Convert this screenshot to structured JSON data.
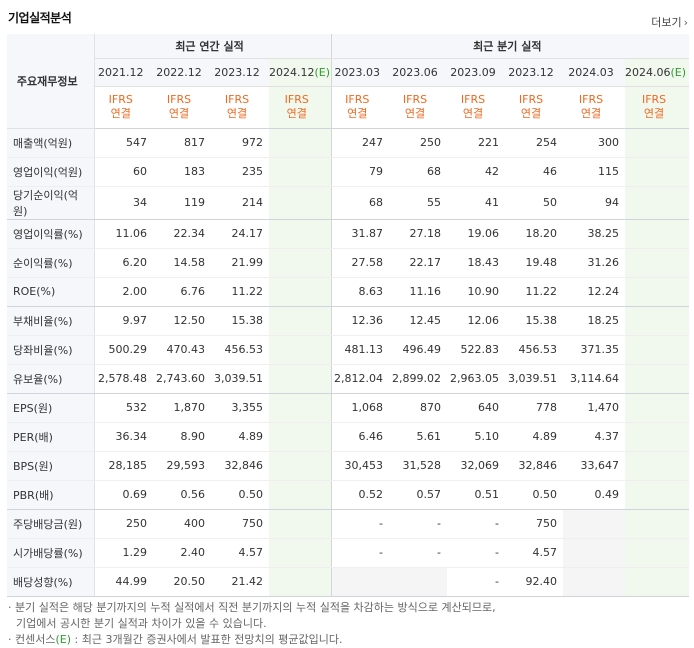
{
  "header": {
    "title": "기업실적분석",
    "more_label": "더보기",
    "more_arrow": "›"
  },
  "table": {
    "row_header_label": "주요재무정보",
    "annual_group": "최근 연간 실적",
    "quarter_group": "최근 분기 실적",
    "annual_periods": [
      "2021.12",
      "2022.12",
      "2023.12",
      "2024.12"
    ],
    "quarter_periods": [
      "2023.03",
      "2023.06",
      "2023.09",
      "2023.12",
      "2024.03",
      "2024.06"
    ],
    "estimate_mark": "(E)",
    "ifrs_top": "IFRS",
    "ifrs_bottom": "연결",
    "rows": [
      {
        "label": "매출액(억원)",
        "values": [
          "547",
          "817",
          "972",
          "",
          "247",
          "250",
          "221",
          "254",
          "300",
          ""
        ]
      },
      {
        "label": "영업이익(억원)",
        "values": [
          "60",
          "183",
          "235",
          "",
          "79",
          "68",
          "42",
          "46",
          "115",
          ""
        ]
      },
      {
        "label": "당기순이익(억원)",
        "values": [
          "34",
          "119",
          "214",
          "",
          "68",
          "55",
          "41",
          "50",
          "94",
          ""
        ]
      },
      {
        "label": "영업이익률(%)",
        "values": [
          "11.06",
          "22.34",
          "24.17",
          "",
          "31.87",
          "27.18",
          "19.06",
          "18.20",
          "38.25",
          ""
        ]
      },
      {
        "label": "순이익률(%)",
        "values": [
          "6.20",
          "14.58",
          "21.99",
          "",
          "27.58",
          "22.17",
          "18.43",
          "19.48",
          "31.26",
          ""
        ]
      },
      {
        "label": "ROE(%)",
        "values": [
          "2.00",
          "6.76",
          "11.22",
          "",
          "8.63",
          "11.16",
          "10.90",
          "11.22",
          "12.24",
          ""
        ]
      },
      {
        "label": "부채비율(%)",
        "values": [
          "9.97",
          "12.50",
          "15.38",
          "",
          "12.36",
          "12.45",
          "12.06",
          "15.38",
          "18.25",
          ""
        ]
      },
      {
        "label": "당좌비율(%)",
        "values": [
          "500.29",
          "470.43",
          "456.53",
          "",
          "481.13",
          "496.49",
          "522.83",
          "456.53",
          "371.35",
          ""
        ]
      },
      {
        "label": "유보율(%)",
        "values": [
          "2,578.48",
          "2,743.60",
          "3,039.51",
          "",
          "2,812.04",
          "2,899.02",
          "2,963.05",
          "3,039.51",
          "3,114.64",
          ""
        ]
      },
      {
        "label": "EPS(원)",
        "values": [
          "532",
          "1,870",
          "3,355",
          "",
          "1,068",
          "870",
          "640",
          "778",
          "1,470",
          ""
        ]
      },
      {
        "label": "PER(배)",
        "values": [
          "36.34",
          "8.90",
          "4.89",
          "",
          "6.46",
          "5.61",
          "5.10",
          "4.89",
          "4.37",
          ""
        ]
      },
      {
        "label": "BPS(원)",
        "values": [
          "28,185",
          "29,593",
          "32,846",
          "",
          "30,453",
          "31,528",
          "32,069",
          "32,846",
          "33,647",
          ""
        ]
      },
      {
        "label": "PBR(배)",
        "values": [
          "0.69",
          "0.56",
          "0.50",
          "",
          "0.52",
          "0.57",
          "0.51",
          "0.50",
          "0.49",
          ""
        ]
      },
      {
        "label": "주당배당금(원)",
        "values": [
          "250",
          "400",
          "750",
          "",
          "-",
          "-",
          "-",
          "750",
          "",
          ""
        ]
      },
      {
        "label": "시가배당률(%)",
        "values": [
          "1.29",
          "2.40",
          "4.57",
          "",
          "-",
          "-",
          "-",
          "4.57",
          "",
          ""
        ]
      },
      {
        "label": "배당성향(%)",
        "values": [
          "44.99",
          "20.50",
          "21.42",
          "",
          "",
          "",
          "-",
          "92.40",
          "",
          ""
        ]
      }
    ]
  },
  "notes": {
    "line1": "· 분기 실적은 해당 분기까지의 누적 실적에서 직전 분기까지의 누적 실적을 차감하는 방식으로 계산되므로,",
    "line2": "기업에서 공시한 분기 실적과 차이가 있을 수 있습니다.",
    "line3_prefix": "· 컨센서스",
    "line3_mark": "(E)",
    "line3_suffix": " : 최근 3개월간 증권사에서 발표한 전망치의 평균값입니다."
  },
  "colors": {
    "ifrs": "#f06820",
    "estimate_bg": "#f1f9ef",
    "estimate_mark": "#2f9b2f",
    "header_bg": "#f5f7fa"
  }
}
